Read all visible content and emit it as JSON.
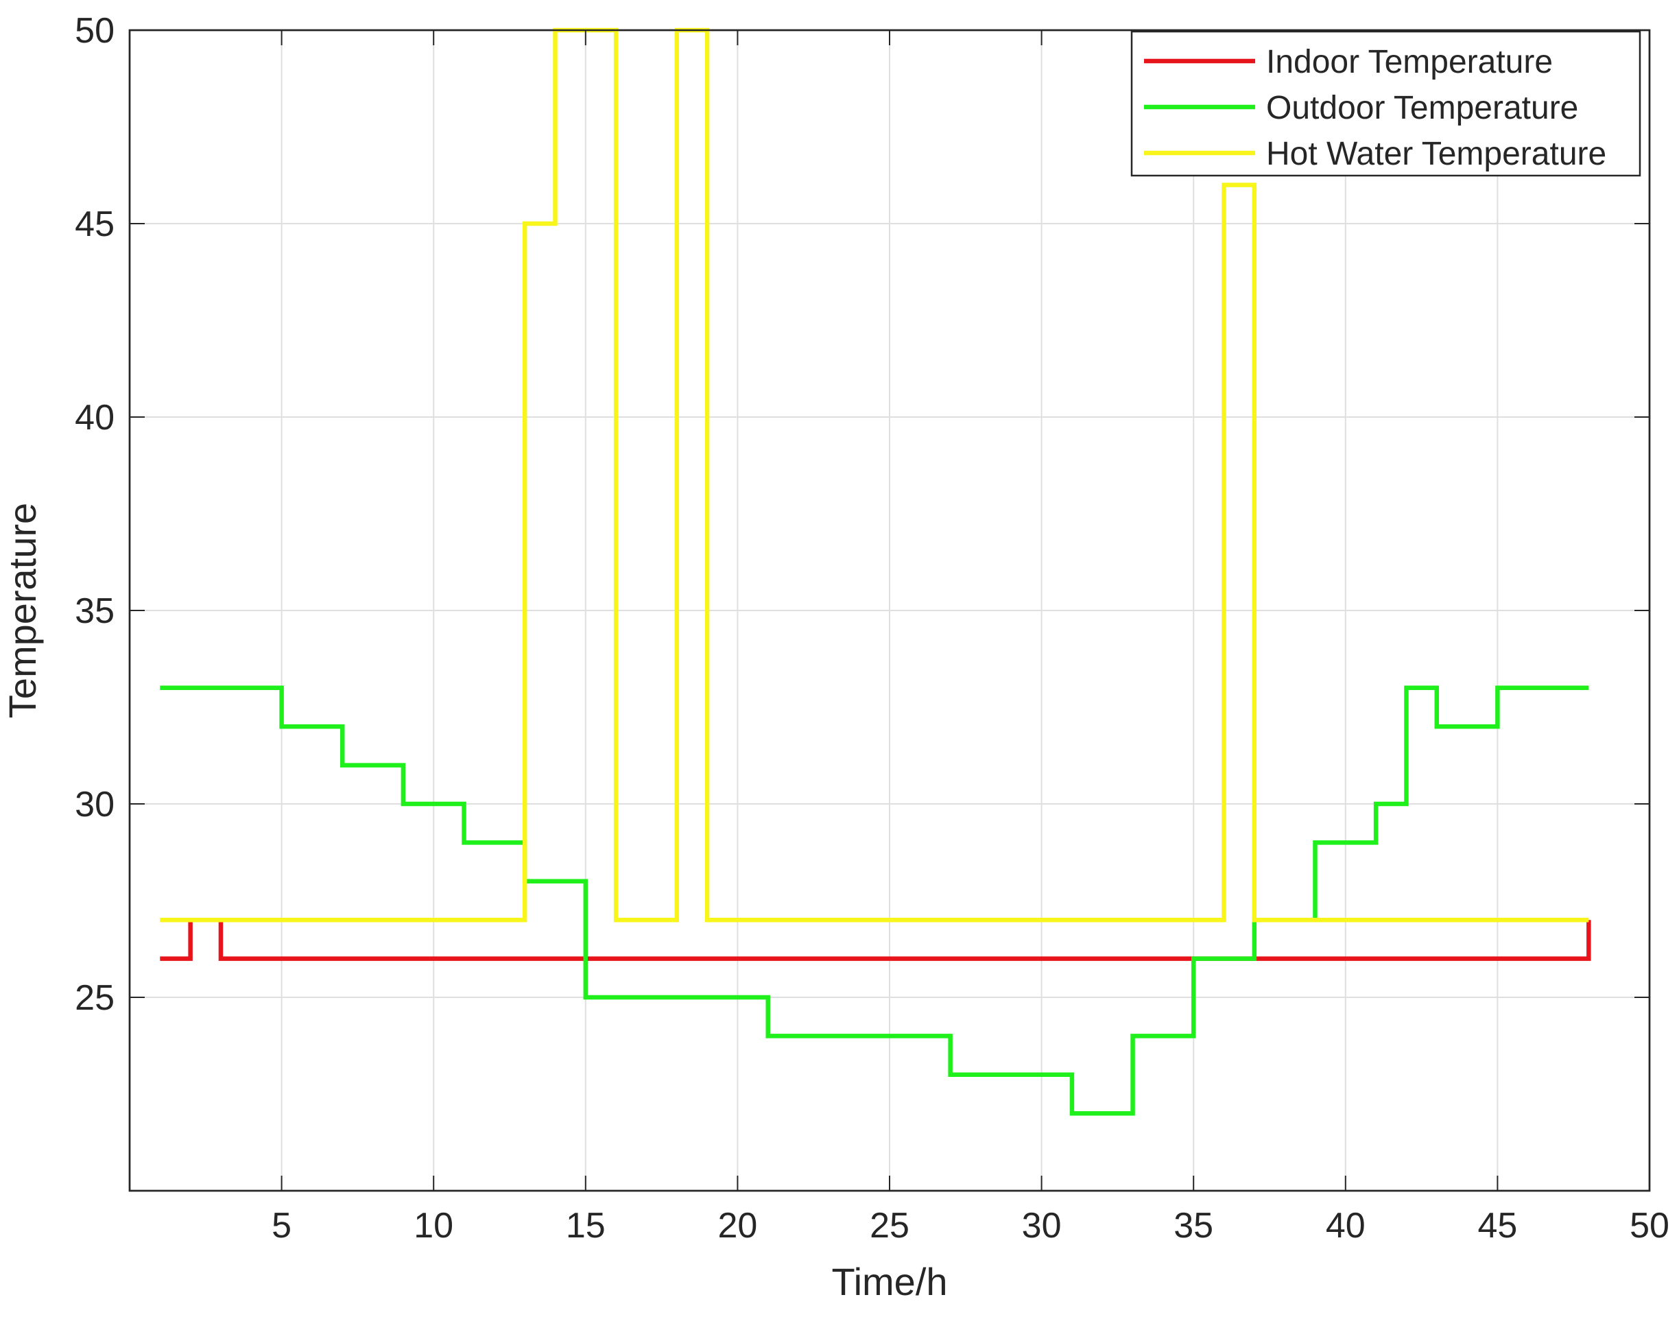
{
  "chart_data": {
    "type": "line",
    "title": "",
    "xlabel": "Time/h",
    "ylabel": "Temperature",
    "xlim": [
      0,
      50
    ],
    "ylim": [
      20,
      50
    ],
    "xticks": [
      5,
      10,
      15,
      20,
      25,
      30,
      35,
      40,
      45,
      50
    ],
    "yticks": [
      25,
      30,
      35,
      40,
      45,
      50
    ],
    "grid": true,
    "legend_position": "top-right",
    "step": "post",
    "x": [
      1,
      2,
      3,
      4,
      5,
      6,
      7,
      8,
      9,
      10,
      11,
      12,
      13,
      14,
      15,
      16,
      17,
      18,
      19,
      20,
      21,
      22,
      23,
      24,
      25,
      26,
      27,
      28,
      29,
      30,
      31,
      32,
      33,
      34,
      35,
      36,
      37,
      38,
      39,
      40,
      41,
      42,
      43,
      44,
      45,
      46,
      47,
      48
    ],
    "series": [
      {
        "name": "Indoor Temperature",
        "color": "#e8141b",
        "values": [
          26,
          27,
          26,
          26,
          26,
          26,
          26,
          26,
          26,
          26,
          26,
          26,
          26,
          26,
          26,
          26,
          26,
          26,
          26,
          26,
          26,
          26,
          26,
          26,
          26,
          26,
          26,
          26,
          26,
          26,
          26,
          26,
          26,
          26,
          26,
          26,
          26,
          26,
          26,
          26,
          26,
          26,
          26,
          26,
          26,
          26,
          26,
          27
        ]
      },
      {
        "name": "Outdoor Temperature",
        "color": "#1ff01c",
        "values": [
          33,
          33,
          33,
          33,
          32,
          32,
          31,
          31,
          30,
          30,
          29,
          29,
          28,
          28,
          25,
          25,
          25,
          25,
          25,
          25,
          24,
          24,
          24,
          24,
          24,
          24,
          23,
          23,
          23,
          23,
          22,
          22,
          24,
          24,
          26,
          26,
          27,
          27,
          29,
          29,
          30,
          33,
          32,
          32,
          33,
          33,
          33,
          33
        ]
      },
      {
        "name": "Hot Water Temperature",
        "color": "#f8f51a",
        "values": [
          27,
          27,
          27,
          27,
          27,
          27,
          27,
          27,
          27,
          27,
          27,
          27,
          45,
          50,
          50,
          27,
          27,
          50,
          27,
          27,
          27,
          27,
          27,
          27,
          27,
          27,
          27,
          27,
          27,
          27,
          27,
          27,
          27,
          27,
          27,
          46,
          27,
          27,
          27,
          27,
          27,
          27,
          27,
          27,
          27,
          27,
          27,
          27
        ]
      }
    ]
  }
}
